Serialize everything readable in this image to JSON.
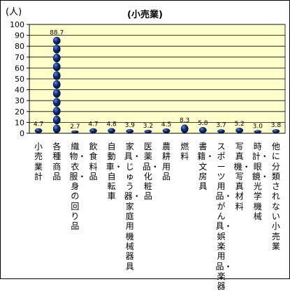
{
  "chart_data": {
    "type": "bar",
    "title": "(小売業)",
    "unit_label": "(人)",
    "ylim": [
      0,
      100
    ],
    "y_ticks": [
      0,
      10,
      20,
      30,
      40,
      50,
      60,
      70,
      80,
      90,
      100
    ],
    "grid": true,
    "legend": "none",
    "colors": {
      "plot_bg": "#ffffcc",
      "bar": "#001a66",
      "bar_highlight": "#4f7fd0",
      "axis": "#000000",
      "grid": "#000000"
    },
    "categories": [
      "小売業計",
      "各種商品",
      "織物・衣服・身の回り品",
      "飲食料品",
      "自動車・自転車",
      "家具・じゅう器・家庭用機械器具",
      "医薬品・化粧品",
      "農耕用品",
      "燃料",
      "書籍・文房具",
      "スポーツ用品・がん具・娯楽用品・楽器",
      "写真機・写真材料",
      "時計・眼鏡・光学機械",
      "他に分類されない小売業"
    ],
    "values": [
      4.7,
      88.7,
      2.7,
      4.7,
      4.8,
      3.9,
      3.2,
      4.5,
      8.3,
      5.8,
      3.7,
      5.2,
      3.0,
      3.8
    ],
    "data_labels": [
      "4.7",
      "88.7",
      "2.7",
      "4.7",
      "4.8",
      "3.9",
      "3.2",
      "4.5",
      "8.3",
      "5.8",
      "3.7",
      "5.2",
      "3.0",
      "3.8"
    ]
  }
}
